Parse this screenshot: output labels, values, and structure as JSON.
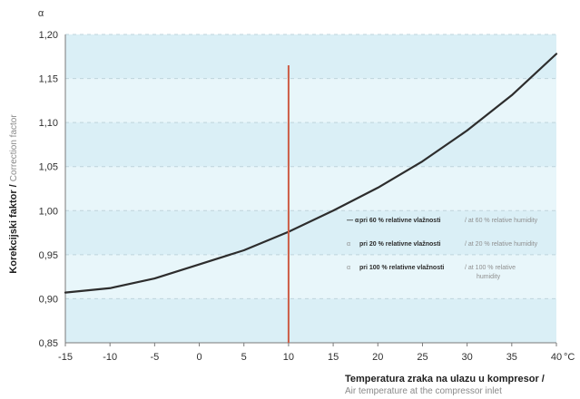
{
  "chart_data": {
    "type": "line",
    "ylabel_symbol": "α",
    "y_axis": {
      "label_primary": "Korekcijski faktor /",
      "label_secondary": "Correction factor",
      "ticks": [
        "1,20",
        "1,15",
        "1,10",
        "1,05",
        "1,00",
        "0,95",
        "0,90",
        "0,85"
      ],
      "range": [
        0.85,
        1.2
      ]
    },
    "x_axis": {
      "label_primary": "Temperatura zraka na ulazu u kompresor /",
      "label_secondary": "Air temperature at the compressor inlet",
      "unit": "°C",
      "ticks": [
        "-15",
        "-10",
        "-5",
        "0",
        "5",
        "10",
        "15",
        "20",
        "25",
        "30",
        "35",
        "40"
      ],
      "range": [
        -15,
        40
      ]
    },
    "grid": true,
    "reference_line": {
      "x": 10,
      "y_top": 1.165,
      "color": "#cc5c45"
    },
    "series": [
      {
        "name": "α pri 60 % relativne vlažnosti / at 60 % relative humidity",
        "color": "#2d2d2d",
        "x": [
          -15,
          -10,
          -5,
          0,
          5,
          10,
          15,
          20,
          25,
          30,
          35,
          40
        ],
        "y": [
          0.907,
          0.912,
          0.923,
          0.939,
          0.955,
          0.976,
          1.0,
          1.026,
          1.056,
          1.091,
          1.131,
          1.178
        ]
      }
    ],
    "legend": {
      "position": "right-middle",
      "items": [
        {
          "marker": "— α",
          "strong": "pri 60 % relativne vlažnosti",
          "soft": "/ at 60 % relative humidity"
        },
        {
          "marker": "α",
          "strong": "pri 20 % relativne vlažnosti",
          "soft": "/ at 20 % relative humidity"
        },
        {
          "marker": "α",
          "strong": "pri 100 % relativne vlažnosti",
          "soft": "/ at 100 % relative",
          "soft2": "humidity"
        }
      ]
    },
    "colors": {
      "background_band_light": "#e8f5fa",
      "background_band_alt": "#d9eef6",
      "grid": "#bfd4dc",
      "axis": "#7a7a7a"
    }
  }
}
